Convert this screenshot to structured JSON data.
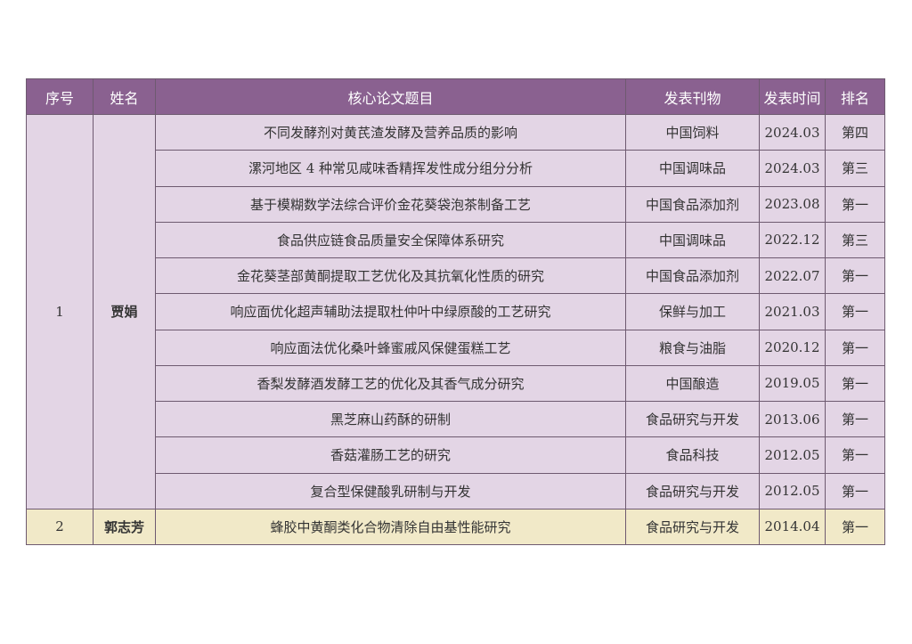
{
  "header": {
    "index": "序号",
    "name": "姓名",
    "title": "核心论文题目",
    "journal": "发表刊物",
    "date": "发表时间",
    "rank": "排名"
  },
  "colors": {
    "header": "#8a6190",
    "row": "#e3d5e5",
    "row_alt": "#f1e9c8"
  },
  "groups": [
    {
      "index": "1",
      "name": "贾娟",
      "papers": [
        {
          "title": "不同发酵剂对黄芪渣发酵及营养品质的影响",
          "journal": "中国饲料",
          "date": "2024.03",
          "rank": "第四"
        },
        {
          "title": "漯河地区 4 种常见咸味香精挥发性成分组分分析",
          "journal": "中国调味品",
          "date": "2024.03",
          "rank": "第三"
        },
        {
          "title": "基于模糊数学法综合评价金花葵袋泡茶制备工艺",
          "journal": "中国食品添加剂",
          "date": "2023.08",
          "rank": "第一"
        },
        {
          "title": "食品供应链食品质量安全保障体系研究",
          "journal": "中国调味品",
          "date": "2022.12",
          "rank": "第三"
        },
        {
          "title": "金花葵茎部黄酮提取工艺优化及其抗氧化性质的研究",
          "journal": "中国食品添加剂",
          "date": "2022.07",
          "rank": "第一"
        },
        {
          "title": "响应面优化超声辅助法提取杜仲叶中绿原酸的工艺研究",
          "journal": "保鲜与加工",
          "date": "2021.03",
          "rank": "第一"
        },
        {
          "title": "响应面法优化桑叶蜂蜜戚风保健蛋糕工艺",
          "journal": "粮食与油脂",
          "date": "2020.12",
          "rank": "第一"
        },
        {
          "title": "香梨发酵酒发酵工艺的优化及其香气成分研究",
          "journal": "中国酿造",
          "date": "2019.05",
          "rank": "第一"
        },
        {
          "title": "黑芝麻山药酥的研制",
          "journal": "食品研究与开发",
          "date": "2013.06",
          "rank": "第一"
        },
        {
          "title": "香菇灌肠工艺的研究",
          "journal": "食品科技",
          "date": "2012.05",
          "rank": "第一"
        },
        {
          "title": "复合型保健酸乳研制与开发",
          "journal": "食品研究与开发",
          "date": "2012.05",
          "rank": "第一"
        }
      ]
    },
    {
      "index": "2",
      "name": "郭志芳",
      "papers": [
        {
          "title": "蜂胶中黄酮类化合物清除自由基性能研究",
          "journal": "食品研究与开发",
          "date": "2014.04",
          "rank": "第一"
        }
      ]
    }
  ]
}
